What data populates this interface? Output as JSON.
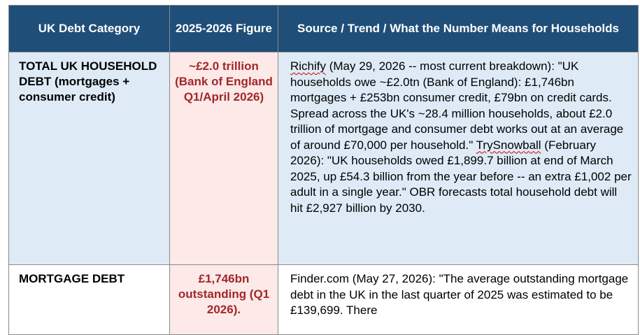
{
  "headers": {
    "category": "UK Debt Category",
    "figure": "2025-2026 Figure",
    "source": "Source / Trend / What the Number Means for Households"
  },
  "rows": [
    {
      "category": "TOTAL UK HOUSEHOLD DEBT (mortgages + consumer credit)",
      "figure": "~£2.0 trillion (Bank of England Q1/April 2026)",
      "source_name_1": "Richify",
      "source_text_1": " (May 29, 2026 -- most current breakdown): \"UK households owe ~£2.0tn (Bank of England): £1,746bn mortgages + £253bn consumer credit, £79bn on credit cards. Spread across the UK's ~28.4 million households, about £2.0 trillion of mortgage and consumer debt works out at an average of around £70,000 per household.\" ",
      "source_name_2": "TrySnowball",
      "source_text_2": " (February 2026): \"UK households owed £1,899.7 billion at end of March 2025, up £54.3 billion from the year before -- an extra £1,002 per adult in a single year.\" OBR forecasts total household debt will hit £2,927 billion by 2030."
    },
    {
      "category": "MORTGAGE DEBT",
      "figure": "£1,746bn outstanding (Q1 2026).",
      "source_text": "Finder.com (May 27, 2026): \"The average outstanding mortgage debt in the UK in the last quarter of 2025 was estimated to be £139,699. There"
    }
  ],
  "colors": {
    "header_bg": "#1f4e79",
    "row_blue_bg": "#deebf7",
    "figure_bg": "#fde9e7",
    "figure_text": "#a0282a"
  }
}
